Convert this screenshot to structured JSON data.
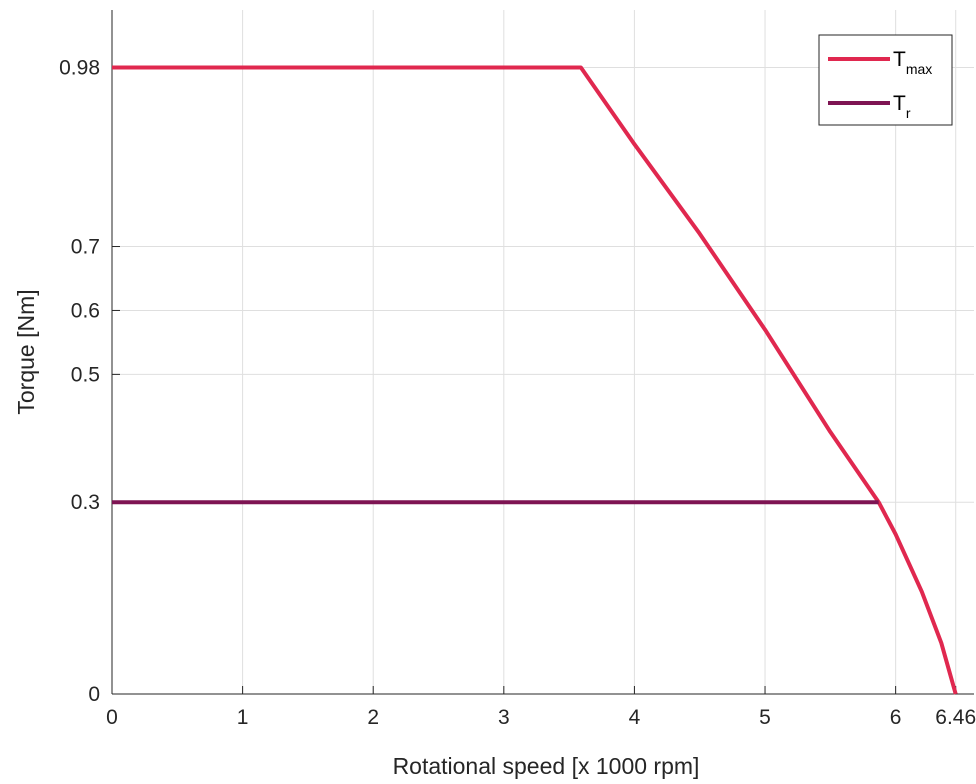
{
  "chart_data": {
    "type": "line",
    "xlabel": "Rotational speed [x 1000 rpm]",
    "ylabel": "Torque [Nm]",
    "xlim": [
      0,
      6.6
    ],
    "ylim": [
      0,
      1.07
    ],
    "x_ticks": [
      0,
      1,
      2,
      3,
      4,
      5,
      6,
      6.46
    ],
    "x_tick_labels": [
      "0",
      "1",
      "2",
      "3",
      "4",
      "5",
      "6",
      "6.46"
    ],
    "y_ticks": [
      0,
      0.3,
      0.5,
      0.6,
      0.7,
      0.98
    ],
    "y_tick_labels": [
      "0",
      "0.3",
      "0.5",
      "0.6",
      "0.7",
      "0.98"
    ],
    "grid": true,
    "legend_position": "top-right",
    "series": [
      {
        "name": "T",
        "name_subscript": "max",
        "color": "#e0284f",
        "x": [
          0,
          3.59,
          4.0,
          4.5,
          5.0,
          5.5,
          5.87,
          6.0,
          6.2,
          6.35,
          6.46
        ],
        "y": [
          0.98,
          0.98,
          0.86,
          0.72,
          0.57,
          0.41,
          0.3,
          0.25,
          0.16,
          0.08,
          0
        ]
      },
      {
        "name": "T",
        "name_subscript": "r",
        "color": "#7e1453",
        "x": [
          0,
          5.87
        ],
        "y": [
          0.3,
          0.3
        ]
      }
    ]
  }
}
